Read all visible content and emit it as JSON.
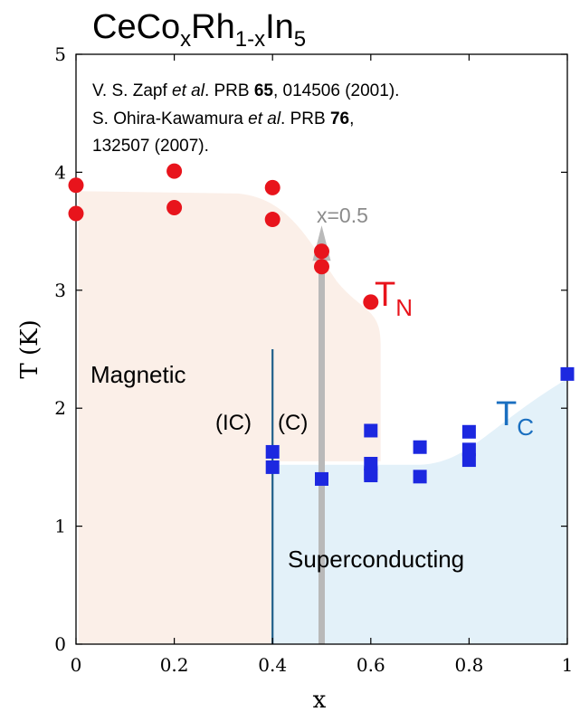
{
  "chart_data": {
    "type": "scatter",
    "title": {
      "main": "CeCo",
      "sub1": "x",
      "mid": "Rh",
      "sub2": "1-x",
      "tail": "In",
      "sub3": "5"
    },
    "xlabel": "x",
    "ylabel": "T (K)",
    "xlim": [
      0,
      1
    ],
    "ylim": [
      0,
      5
    ],
    "xticks": [
      0,
      0.2,
      0.4,
      0.6,
      0.8,
      1
    ],
    "xtick_labels": [
      "0",
      "0.2",
      "0.4",
      "0.6",
      "0.8",
      "1"
    ],
    "yticks": [
      0,
      1,
      2,
      3,
      4,
      5
    ],
    "ytick_labels": [
      "0",
      "1",
      "2",
      "3",
      "4",
      "5"
    ],
    "grid": false,
    "references": [
      {
        "pre": "V. S. Zapf ",
        "etal": "et al",
        "mid": ". PRB ",
        "vol": "65",
        "post": ", 014506 (2001)."
      },
      {
        "pre": "S. Ohira-Kawamura ",
        "etal": "et al",
        "mid": ". PRB ",
        "vol": "76",
        "post": ","
      },
      {
        "pre": "132507 (2007).",
        "etal": "",
        "mid": "",
        "vol": "",
        "post": ""
      }
    ],
    "series": [
      {
        "name": "TN",
        "label_main": "T",
        "label_sub": "N",
        "marker": "circle",
        "color": "#e8141c",
        "points": [
          [
            0,
            3.89
          ],
          [
            0,
            3.65
          ],
          [
            0.2,
            4.01
          ],
          [
            0.2,
            3.7
          ],
          [
            0.4,
            3.87
          ],
          [
            0.4,
            3.6
          ],
          [
            0.5,
            3.33
          ],
          [
            0.5,
            3.2
          ],
          [
            0.6,
            2.9
          ]
        ]
      },
      {
        "name": "TC",
        "label_main": "T",
        "label_sub": "C",
        "marker": "square",
        "color": "#1c28e0",
        "points": [
          [
            0.4,
            1.63
          ],
          [
            0.4,
            1.5
          ],
          [
            0.5,
            1.4
          ],
          [
            0.6,
            1.81
          ],
          [
            0.6,
            1.53
          ],
          [
            0.6,
            1.45
          ],
          [
            0.6,
            1.43
          ],
          [
            0.7,
            1.67
          ],
          [
            0.7,
            1.42
          ],
          [
            0.8,
            1.8
          ],
          [
            0.8,
            1.65
          ],
          [
            0.8,
            1.56
          ],
          [
            1.0,
            2.29
          ]
        ]
      }
    ],
    "region_labels": {
      "magnetic": "Magnetic",
      "superconducting": "Superconducting",
      "ic": "(IC)",
      "c": "(C)"
    },
    "boundary_x": 0.4,
    "arrow": {
      "x": 0.5,
      "label": "x=0.5"
    },
    "colors": {
      "magnetic_fill": "#fbefe8",
      "sc_fill": "#e3f1f9",
      "boundary_line": "#1f5f8a",
      "arrow": "#b9b9b9",
      "arrow_label": "#8c8c8c",
      "tn_label": "#e8141c",
      "tc_label": "#1a6fc0"
    }
  }
}
